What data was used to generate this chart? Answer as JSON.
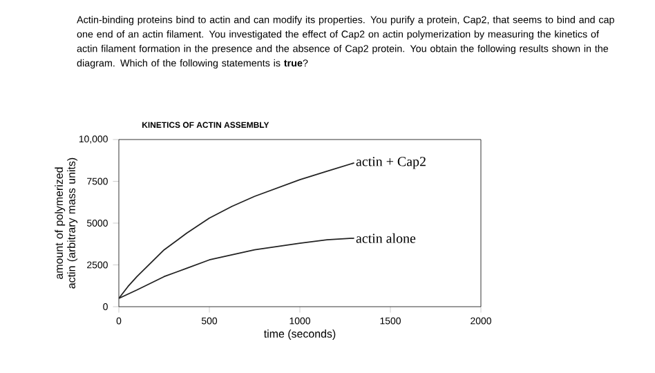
{
  "chart_data": {
    "type": "line",
    "title": "KINETICS OF ACTIN ASSEMBLY",
    "xlabel": "time (seconds)",
    "ylabel": "amount of polymerized actin (arbitrary mass units)",
    "annotations": [
      "Actin-binding proteins bind to actin and can modify its properties. You purify a protein, Cap2, that seems to bind and cap one end of an actin filament. You investigated the effect of Cap2 on actin polymerization by measuring the kinetics of actin filament formation in the presence and the absence of Cap2 protein. You obtain the following results shown in the diagram. Which of the following statements is **true**?"
    ],
    "series": [
      {
        "name": "actin + Cap2",
        "color": "#222222",
        "x": [
          0,
          50,
          100,
          175,
          250,
          375,
          500,
          625,
          750,
          875,
          1000,
          1150,
          1300
        ],
        "values": [
          500,
          1200,
          1800,
          2600,
          3400,
          4400,
          5300,
          6000,
          6600,
          7100,
          7600,
          8100,
          8600
        ]
      },
      {
        "name": "actin alone",
        "color": "#222222",
        "x": [
          0,
          100,
          250,
          375,
          500,
          625,
          750,
          875,
          1000,
          1150,
          1300
        ],
        "values": [
          500,
          1000,
          1800,
          2300,
          2800,
          3100,
          3400,
          3600,
          3800,
          4000,
          4100
        ]
      }
    ],
    "xlim": [
      0,
      2000
    ],
    "xticks": [
      0,
      500,
      1000,
      1500,
      2000
    ],
    "ylim": [
      0,
      10000
    ],
    "yticks": [
      0,
      2500,
      5000,
      7500,
      {
        "value": 10000,
        "label": "10,000"
      }
    ],
    "legend": false,
    "grid": false,
    "marker": "none",
    "line_style": "solid"
  }
}
